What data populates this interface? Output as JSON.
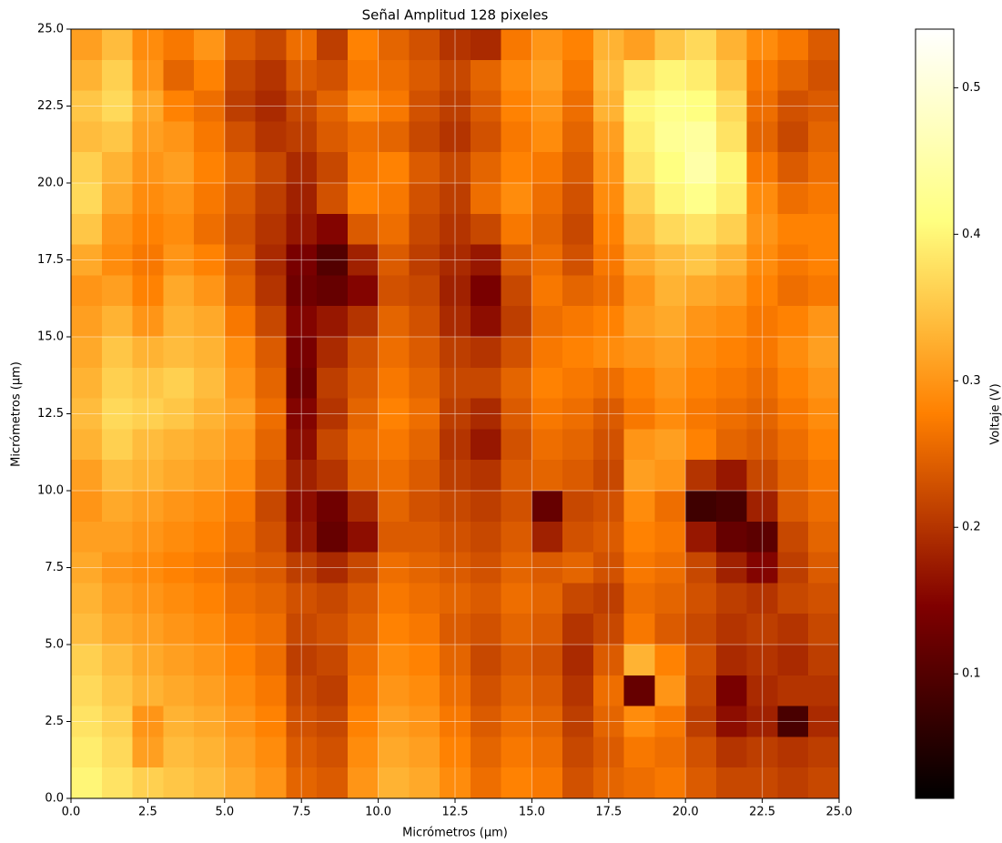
{
  "chart_data": {
    "type": "heatmap",
    "title": "Señal Amplitud 128 pixeles",
    "xlabel": "Micrómetros (µm)",
    "ylabel": "Micrómetros (µm)",
    "xlim": [
      0,
      25
    ],
    "ylim": [
      0,
      25
    ],
    "xticks": [
      {
        "value": 0,
        "label": "0.0"
      },
      {
        "value": 2.5,
        "label": "2.5"
      },
      {
        "value": 5,
        "label": "5.0"
      },
      {
        "value": 7.5,
        "label": "7.5"
      },
      {
        "value": 10,
        "label": "10.0"
      },
      {
        "value": 12.5,
        "label": "12.5"
      },
      {
        "value": 15,
        "label": "15.0"
      },
      {
        "value": 17.5,
        "label": "17.5"
      },
      {
        "value": 20,
        "label": "20.0"
      },
      {
        "value": 22.5,
        "label": "22.5"
      },
      {
        "value": 25,
        "label": "25.0"
      }
    ],
    "yticks": [
      {
        "value": 0,
        "label": "0.0"
      },
      {
        "value": 2.5,
        "label": "2.5"
      },
      {
        "value": 5,
        "label": "5.0"
      },
      {
        "value": 7.5,
        "label": "7.5"
      },
      {
        "value": 10,
        "label": "10.0"
      },
      {
        "value": 12.5,
        "label": "12.5"
      },
      {
        "value": 15,
        "label": "15.0"
      },
      {
        "value": 17.5,
        "label": "17.5"
      },
      {
        "value": 20,
        "label": "20.0"
      },
      {
        "value": 22.5,
        "label": "22.5"
      },
      {
        "value": 25,
        "label": "25.0"
      }
    ],
    "grid": true,
    "colormap": "afmhot",
    "clim": [
      0.015,
      0.54
    ],
    "colorbar_label": "Voltaje (V)",
    "colorbar_ticks": [
      0.1,
      0.2,
      0.3,
      0.4,
      0.5
    ],
    "z": [
      [
        0.31,
        0.34,
        0.29,
        0.27,
        0.3,
        0.24,
        0.22,
        0.26,
        0.21,
        0.28,
        0.25,
        0.23,
        0.2,
        0.19,
        0.27,
        0.3,
        0.28,
        0.33,
        0.31,
        0.35,
        0.37,
        0.33,
        0.29,
        0.27,
        0.24
      ],
      [
        0.33,
        0.36,
        0.3,
        0.25,
        0.28,
        0.22,
        0.2,
        0.24,
        0.23,
        0.27,
        0.26,
        0.24,
        0.22,
        0.25,
        0.29,
        0.31,
        0.27,
        0.34,
        0.38,
        0.4,
        0.39,
        0.35,
        0.27,
        0.25,
        0.23
      ],
      [
        0.35,
        0.37,
        0.32,
        0.28,
        0.26,
        0.21,
        0.19,
        0.22,
        0.25,
        0.29,
        0.27,
        0.23,
        0.21,
        0.24,
        0.28,
        0.3,
        0.26,
        0.33,
        0.4,
        0.42,
        0.41,
        0.37,
        0.26,
        0.23,
        0.24
      ],
      [
        0.34,
        0.35,
        0.31,
        0.3,
        0.27,
        0.23,
        0.2,
        0.21,
        0.24,
        0.26,
        0.25,
        0.22,
        0.2,
        0.23,
        0.27,
        0.29,
        0.25,
        0.31,
        0.39,
        0.43,
        0.44,
        0.38,
        0.25,
        0.22,
        0.25
      ],
      [
        0.36,
        0.33,
        0.3,
        0.31,
        0.28,
        0.25,
        0.22,
        0.19,
        0.22,
        0.27,
        0.28,
        0.24,
        0.22,
        0.25,
        0.28,
        0.27,
        0.24,
        0.3,
        0.38,
        0.41,
        0.45,
        0.4,
        0.27,
        0.24,
        0.26
      ],
      [
        0.37,
        0.32,
        0.29,
        0.3,
        0.27,
        0.24,
        0.21,
        0.18,
        0.23,
        0.28,
        0.27,
        0.23,
        0.21,
        0.26,
        0.29,
        0.26,
        0.23,
        0.29,
        0.36,
        0.4,
        0.42,
        0.39,
        0.29,
        0.26,
        0.27
      ],
      [
        0.35,
        0.3,
        0.28,
        0.29,
        0.26,
        0.23,
        0.2,
        0.17,
        0.15,
        0.24,
        0.26,
        0.22,
        0.2,
        0.22,
        0.27,
        0.25,
        0.22,
        0.28,
        0.34,
        0.37,
        0.38,
        0.36,
        0.3,
        0.28,
        0.28
      ],
      [
        0.32,
        0.29,
        0.27,
        0.3,
        0.28,
        0.24,
        0.19,
        0.14,
        0.1,
        0.18,
        0.24,
        0.21,
        0.19,
        0.17,
        0.24,
        0.26,
        0.23,
        0.27,
        0.32,
        0.34,
        0.35,
        0.33,
        0.29,
        0.27,
        0.28
      ],
      [
        0.3,
        0.31,
        0.28,
        0.32,
        0.3,
        0.25,
        0.2,
        0.13,
        0.12,
        0.15,
        0.23,
        0.22,
        0.18,
        0.14,
        0.22,
        0.27,
        0.25,
        0.26,
        0.3,
        0.33,
        0.32,
        0.31,
        0.28,
        0.26,
        0.27
      ],
      [
        0.31,
        0.33,
        0.3,
        0.33,
        0.32,
        0.27,
        0.22,
        0.15,
        0.17,
        0.2,
        0.25,
        0.23,
        0.19,
        0.16,
        0.21,
        0.26,
        0.27,
        0.28,
        0.31,
        0.32,
        0.3,
        0.29,
        0.27,
        0.28,
        0.3
      ],
      [
        0.32,
        0.35,
        0.33,
        0.34,
        0.33,
        0.29,
        0.24,
        0.14,
        0.19,
        0.23,
        0.26,
        0.24,
        0.21,
        0.2,
        0.23,
        0.27,
        0.28,
        0.29,
        0.3,
        0.31,
        0.29,
        0.28,
        0.27,
        0.29,
        0.31
      ],
      [
        0.33,
        0.36,
        0.35,
        0.36,
        0.34,
        0.3,
        0.25,
        0.13,
        0.21,
        0.24,
        0.27,
        0.25,
        0.22,
        0.22,
        0.25,
        0.28,
        0.27,
        0.26,
        0.28,
        0.3,
        0.28,
        0.27,
        0.26,
        0.28,
        0.3
      ],
      [
        0.34,
        0.37,
        0.36,
        0.35,
        0.33,
        0.31,
        0.26,
        0.15,
        0.2,
        0.25,
        0.28,
        0.26,
        0.21,
        0.19,
        0.24,
        0.27,
        0.26,
        0.24,
        0.27,
        0.29,
        0.27,
        0.26,
        0.25,
        0.27,
        0.29
      ],
      [
        0.33,
        0.36,
        0.34,
        0.33,
        0.32,
        0.3,
        0.25,
        0.16,
        0.22,
        0.26,
        0.27,
        0.25,
        0.2,
        0.17,
        0.23,
        0.26,
        0.25,
        0.23,
        0.3,
        0.31,
        0.28,
        0.25,
        0.24,
        0.26,
        0.28
      ],
      [
        0.31,
        0.34,
        0.33,
        0.32,
        0.31,
        0.29,
        0.24,
        0.18,
        0.2,
        0.25,
        0.26,
        0.24,
        0.21,
        0.2,
        0.24,
        0.25,
        0.24,
        0.22,
        0.31,
        0.3,
        0.2,
        0.17,
        0.22,
        0.25,
        0.27
      ],
      [
        0.3,
        0.32,
        0.31,
        0.3,
        0.29,
        0.27,
        0.22,
        0.16,
        0.13,
        0.19,
        0.25,
        0.23,
        0.22,
        0.21,
        0.23,
        0.12,
        0.22,
        0.23,
        0.29,
        0.26,
        0.08,
        0.09,
        0.18,
        0.24,
        0.26
      ],
      [
        0.31,
        0.31,
        0.3,
        0.29,
        0.28,
        0.26,
        0.23,
        0.17,
        0.12,
        0.16,
        0.24,
        0.24,
        0.23,
        0.22,
        0.24,
        0.18,
        0.23,
        0.24,
        0.28,
        0.27,
        0.17,
        0.12,
        0.11,
        0.22,
        0.25
      ],
      [
        0.32,
        0.3,
        0.29,
        0.28,
        0.27,
        0.25,
        0.24,
        0.21,
        0.19,
        0.22,
        0.26,
        0.25,
        0.24,
        0.23,
        0.25,
        0.24,
        0.25,
        0.23,
        0.27,
        0.26,
        0.22,
        0.18,
        0.15,
        0.21,
        0.24
      ],
      [
        0.33,
        0.31,
        0.3,
        0.29,
        0.28,
        0.26,
        0.25,
        0.23,
        0.22,
        0.24,
        0.27,
        0.26,
        0.25,
        0.24,
        0.26,
        0.25,
        0.22,
        0.21,
        0.26,
        0.25,
        0.23,
        0.21,
        0.2,
        0.22,
        0.23
      ],
      [
        0.34,
        0.32,
        0.31,
        0.3,
        0.29,
        0.27,
        0.26,
        0.22,
        0.23,
        0.25,
        0.28,
        0.27,
        0.24,
        0.23,
        0.25,
        0.24,
        0.2,
        0.22,
        0.27,
        0.24,
        0.22,
        0.2,
        0.21,
        0.2,
        0.22
      ],
      [
        0.36,
        0.34,
        0.32,
        0.31,
        0.3,
        0.28,
        0.26,
        0.21,
        0.22,
        0.26,
        0.29,
        0.28,
        0.25,
        0.22,
        0.24,
        0.23,
        0.19,
        0.24,
        0.33,
        0.28,
        0.23,
        0.19,
        0.2,
        0.19,
        0.21
      ],
      [
        0.37,
        0.35,
        0.33,
        0.32,
        0.31,
        0.29,
        0.27,
        0.22,
        0.21,
        0.27,
        0.3,
        0.29,
        0.26,
        0.23,
        0.25,
        0.24,
        0.2,
        0.26,
        0.12,
        0.3,
        0.22,
        0.14,
        0.19,
        0.2,
        0.2
      ],
      [
        0.38,
        0.36,
        0.3,
        0.33,
        0.32,
        0.3,
        0.28,
        0.23,
        0.22,
        0.28,
        0.31,
        0.3,
        0.27,
        0.24,
        0.26,
        0.25,
        0.21,
        0.25,
        0.29,
        0.27,
        0.21,
        0.16,
        0.18,
        0.09,
        0.19
      ],
      [
        0.39,
        0.37,
        0.31,
        0.34,
        0.33,
        0.31,
        0.29,
        0.24,
        0.23,
        0.29,
        0.32,
        0.31,
        0.28,
        0.25,
        0.27,
        0.26,
        0.22,
        0.24,
        0.27,
        0.26,
        0.23,
        0.2,
        0.21,
        0.2,
        0.21
      ],
      [
        0.4,
        0.38,
        0.36,
        0.35,
        0.34,
        0.32,
        0.3,
        0.25,
        0.24,
        0.3,
        0.33,
        0.32,
        0.29,
        0.26,
        0.28,
        0.27,
        0.23,
        0.25,
        0.26,
        0.27,
        0.24,
        0.22,
        0.22,
        0.21,
        0.22
      ]
    ]
  }
}
